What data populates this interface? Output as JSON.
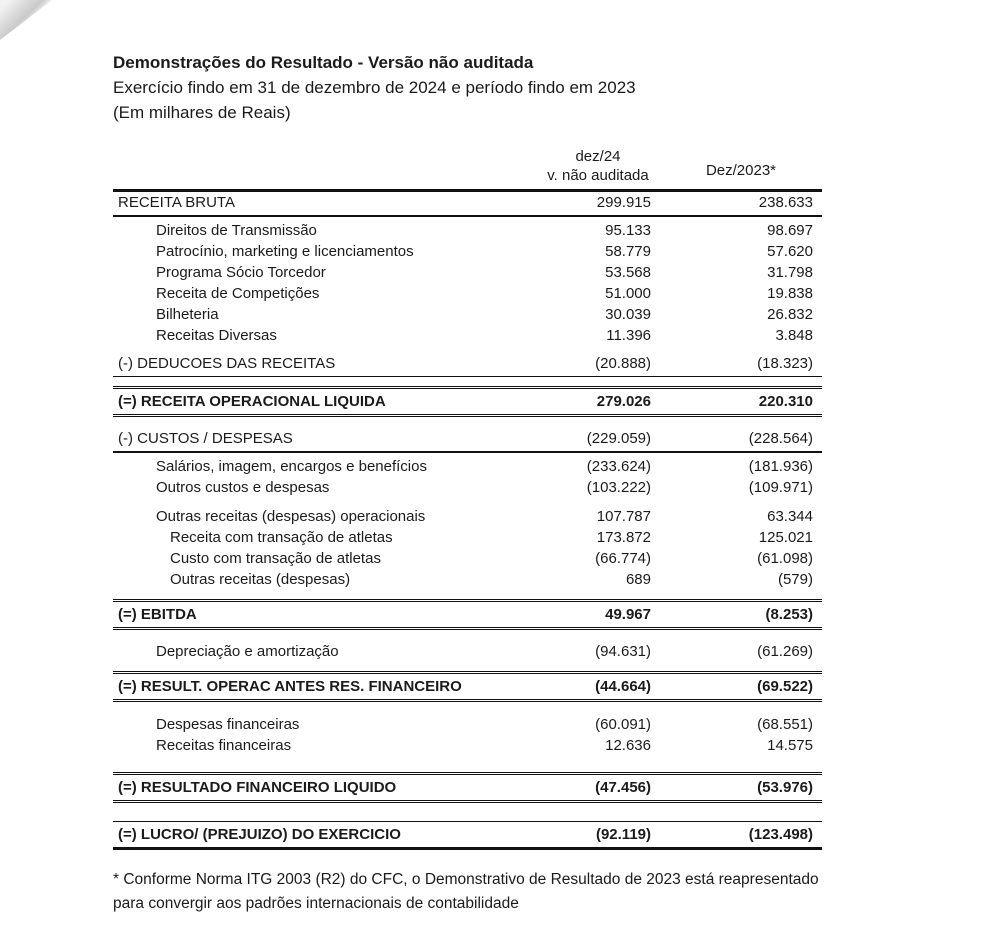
{
  "page": {
    "title": "Demonstrações do Resultado - Versão não auditada",
    "subtitle": "Exercício findo em 31 de dezembro de 2024 e período findo em 2023",
    "unit_note": "(Em milhares de Reais)"
  },
  "table": {
    "columns": {
      "col2024_line1": "dez/24",
      "col2024_line2": "v. não auditada",
      "col2023": "Dez/2023*"
    },
    "rows": [
      {
        "label": "RECEITA BRUTA",
        "v2024": "299.915",
        "v2023": "238.633",
        "indent": 0,
        "bold": false,
        "rule_bottom": "med",
        "gap": 0
      },
      {
        "label": "Direitos de Transmissão",
        "v2024": "95.133",
        "v2023": "98.697",
        "indent": 1,
        "gap": 3
      },
      {
        "label": "Patrocínio, marketing e licenciamentos",
        "v2024": "58.779",
        "v2023": "57.620",
        "indent": 1
      },
      {
        "label": "Programa Sócio Torcedor",
        "v2024": "53.568",
        "v2023": "31.798",
        "indent": 1
      },
      {
        "label": "Receita de Competições",
        "v2024": "51.000",
        "v2023": "19.838",
        "indent": 1
      },
      {
        "label": "Bilheteria",
        "v2024": "30.039",
        "v2023": "26.832",
        "indent": 1
      },
      {
        "label": "Receitas Diversas",
        "v2024": "11.396",
        "v2023": "3.848",
        "indent": 1
      },
      {
        "label": "(-) DEDUCOES DAS RECEITAS",
        "v2024": "(20.888)",
        "v2023": "(18.323)",
        "indent": 0,
        "rule_bottom": "thin",
        "gap": 7
      },
      {
        "label": "(=) RECEITA OPERACIONAL LIQUIDA",
        "v2024": "279.026",
        "v2023": "220.310",
        "indent": 0,
        "bold": true,
        "rule_top": "double",
        "rule_bottom": "double",
        "gap": 9
      },
      {
        "label": "(-) CUSTOS / DESPESAS",
        "v2024": "(229.059)",
        "v2023": "(228.564)",
        "indent": 0,
        "rule_bottom": "med",
        "gap": 11
      },
      {
        "label": "Salários, imagem, encargos e benefícios",
        "v2024": "(233.624)",
        "v2023": "(181.936)",
        "indent": 1,
        "gap": 3
      },
      {
        "label": "Outros custos e despesas",
        "v2024": "(103.222)",
        "v2023": "(109.971)",
        "indent": 1
      },
      {
        "label": "Outras receitas (despesas) operacionais",
        "v2024": "107.787",
        "v2023": "63.344",
        "indent": 1,
        "gap": 8
      },
      {
        "label": "Receita com transação de atletas",
        "v2024": "173.872",
        "v2023": "125.021",
        "indent": 2
      },
      {
        "label": "Custo com transação de atletas",
        "v2024": "(66.774)",
        "v2023": "(61.098)",
        "indent": 2
      },
      {
        "label": "Outras receitas (despesas)",
        "v2024": "689",
        "v2023": "(579)",
        "indent": 2
      },
      {
        "label": "(=) EBITDA",
        "v2024": "49.967",
        "v2023": "(8.253)",
        "indent": 0,
        "bold": true,
        "rule_top": "double",
        "rule_bottom": "double",
        "gap": 9
      },
      {
        "label": "Depreciação e amortização",
        "v2024": "(94.631)",
        "v2023": "(61.269)",
        "indent": 1,
        "gap": 11
      },
      {
        "label": "(=) RESULT. OPERAC ANTES RES. FINANCEIRO",
        "v2024": "(44.664)",
        "v2023": "(69.522)",
        "indent": 0,
        "bold": true,
        "rule_top": "double",
        "rule_bottom": "double",
        "gap": 9
      },
      {
        "label": "Despesas financeiras",
        "v2024": "(60.091)",
        "v2023": "(68.551)",
        "indent": 1,
        "gap": 12
      },
      {
        "label": "Receitas financeiras",
        "v2024": "12.636",
        "v2023": "14.575",
        "indent": 1
      },
      {
        "label": "(=) RESULTADO FINANCEIRO LIQUIDO",
        "v2024": "(47.456)",
        "v2023": "(53.976)",
        "indent": 0,
        "bold": true,
        "rule_top": "double",
        "rule_bottom": "double",
        "gap": 16
      },
      {
        "label": "(=) LUCRO/ (PREJUIZO) DO EXERCICIO",
        "v2024": "(92.119)",
        "v2023": "(123.498)",
        "indent": 0,
        "bold": true,
        "rule_top": "thin",
        "rule_bottom": "thick",
        "gap": 18
      }
    ]
  },
  "footnote": {
    "line1": "* Conforme Norma ITG 2003 (R2) do CFC, o Demonstrativo de Resultado de 2023 está reapresentado",
    "line2": "para convergir aos padrões internacionais de contabilidade"
  }
}
